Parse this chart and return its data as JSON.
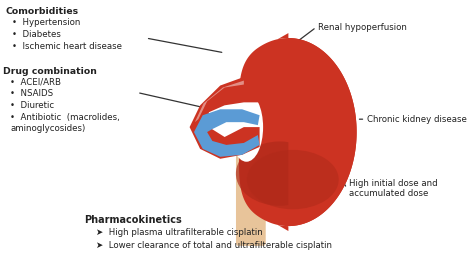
{
  "background_color": "#ffffff",
  "kidney_color": "#cc3322",
  "kidney_dark_color": "#b02a1a",
  "ureter_color": "#e8c49a",
  "artery_color": "#cc3322",
  "vein_color": "#5b9bd5",
  "left_texts": {
    "comorbidities_title": "Comorbidities",
    "comorbidities_items": [
      "Hypertension",
      "Diabetes",
      "Ischemic heart disease"
    ],
    "drug_title": "Drug combination",
    "drug_items": [
      "ACEI/ARB",
      "NSAIDS",
      "Diuretic",
      "Antibiotic  (macrolides,\naminoglycosides)"
    ]
  },
  "right_texts": {
    "renal": "Renal hypoperfusion",
    "chronic": "Chronic kidney disease",
    "high_dose": "High initial dose and\naccumulated dose"
  },
  "bottom_texts": {
    "title": "Pharmacokinetics",
    "items": [
      "High plasma ultrafilterable cisplatin",
      "Lower clearance of total and ultrafilterable cisplatin"
    ]
  },
  "line_color": "#333333",
  "text_color": "#222222",
  "font_size": 6.2
}
